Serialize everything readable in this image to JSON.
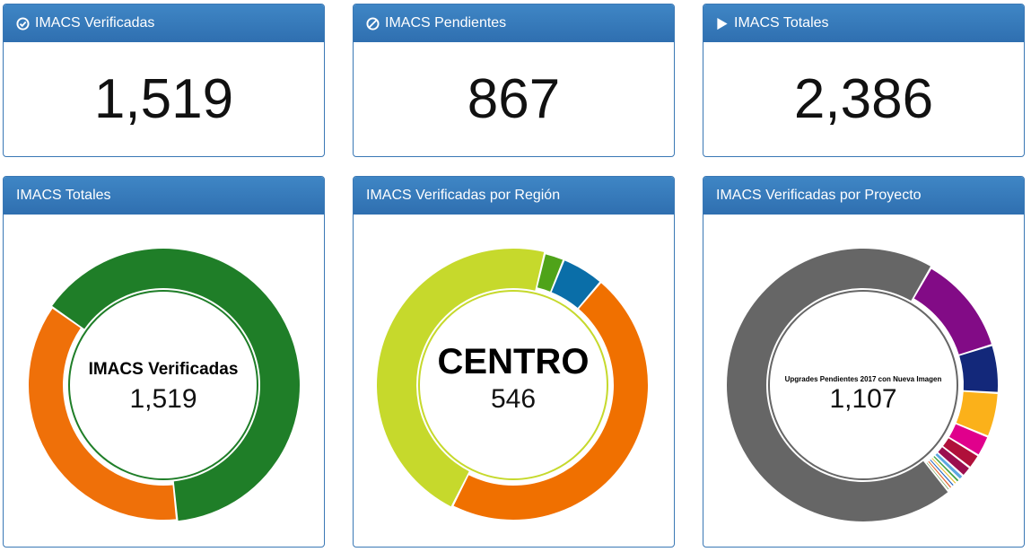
{
  "kpis": [
    {
      "title": "IMACS Verificadas",
      "value": "1,519",
      "icon": "check-circle-icon"
    },
    {
      "title": "IMACS Pendientes",
      "value": "867",
      "icon": "ban-icon"
    },
    {
      "title": "IMACS Totales",
      "value": "2,386",
      "icon": "play-icon"
    }
  ],
  "charts": [
    {
      "title": "IMACS Totales",
      "center_label": "IMACS Verificadas",
      "center_value": "1,519"
    },
    {
      "title": "IMACS Verificadas por Región",
      "center_label": "CENTRO",
      "center_value": "546"
    },
    {
      "title": "IMACS Verificadas por Proyecto",
      "center_label": "Upgrades Pendientes 2017 con Nueva Imagen",
      "center_value": "1,107"
    }
  ],
  "chart_data": [
    {
      "type": "pie",
      "categories": [
        "IMACS Verificadas",
        "IMACS Pendientes"
      ],
      "values": [
        1519,
        867
      ],
      "colors": [
        "#1f7e28",
        "#ef7009"
      ],
      "highlight": 0
    },
    {
      "type": "pie",
      "categories": [
        "",
        "",
        "CENTRO",
        ""
      ],
      "values": [
        60,
        545,
        546,
        28
      ],
      "colors": [
        "#0a6ea8",
        "#f07000",
        "#c6d92c",
        "#4fa319"
      ],
      "highlight": 2
    },
    {
      "type": "pie",
      "categories": [
        "",
        "",
        "",
        "",
        "",
        "",
        "",
        "",
        "",
        "",
        "",
        "",
        "Upgrades Pendientes 2017 con Nueva Imagen"
      ],
      "values": [
        190,
        92,
        85,
        40,
        28,
        20,
        10,
        7,
        6,
        6,
        6,
        5,
        1107
      ],
      "colors": [
        "#820b86",
        "#13287a",
        "#fbb11a",
        "#e0008c",
        "#b0103a",
        "#9b0f4f",
        "#5da7e1",
        "#3c9f3c",
        "#f0c030",
        "#1a5fc0",
        "#e05a20",
        "#4b8a2b",
        "#666666"
      ],
      "highlight": 12
    }
  ]
}
